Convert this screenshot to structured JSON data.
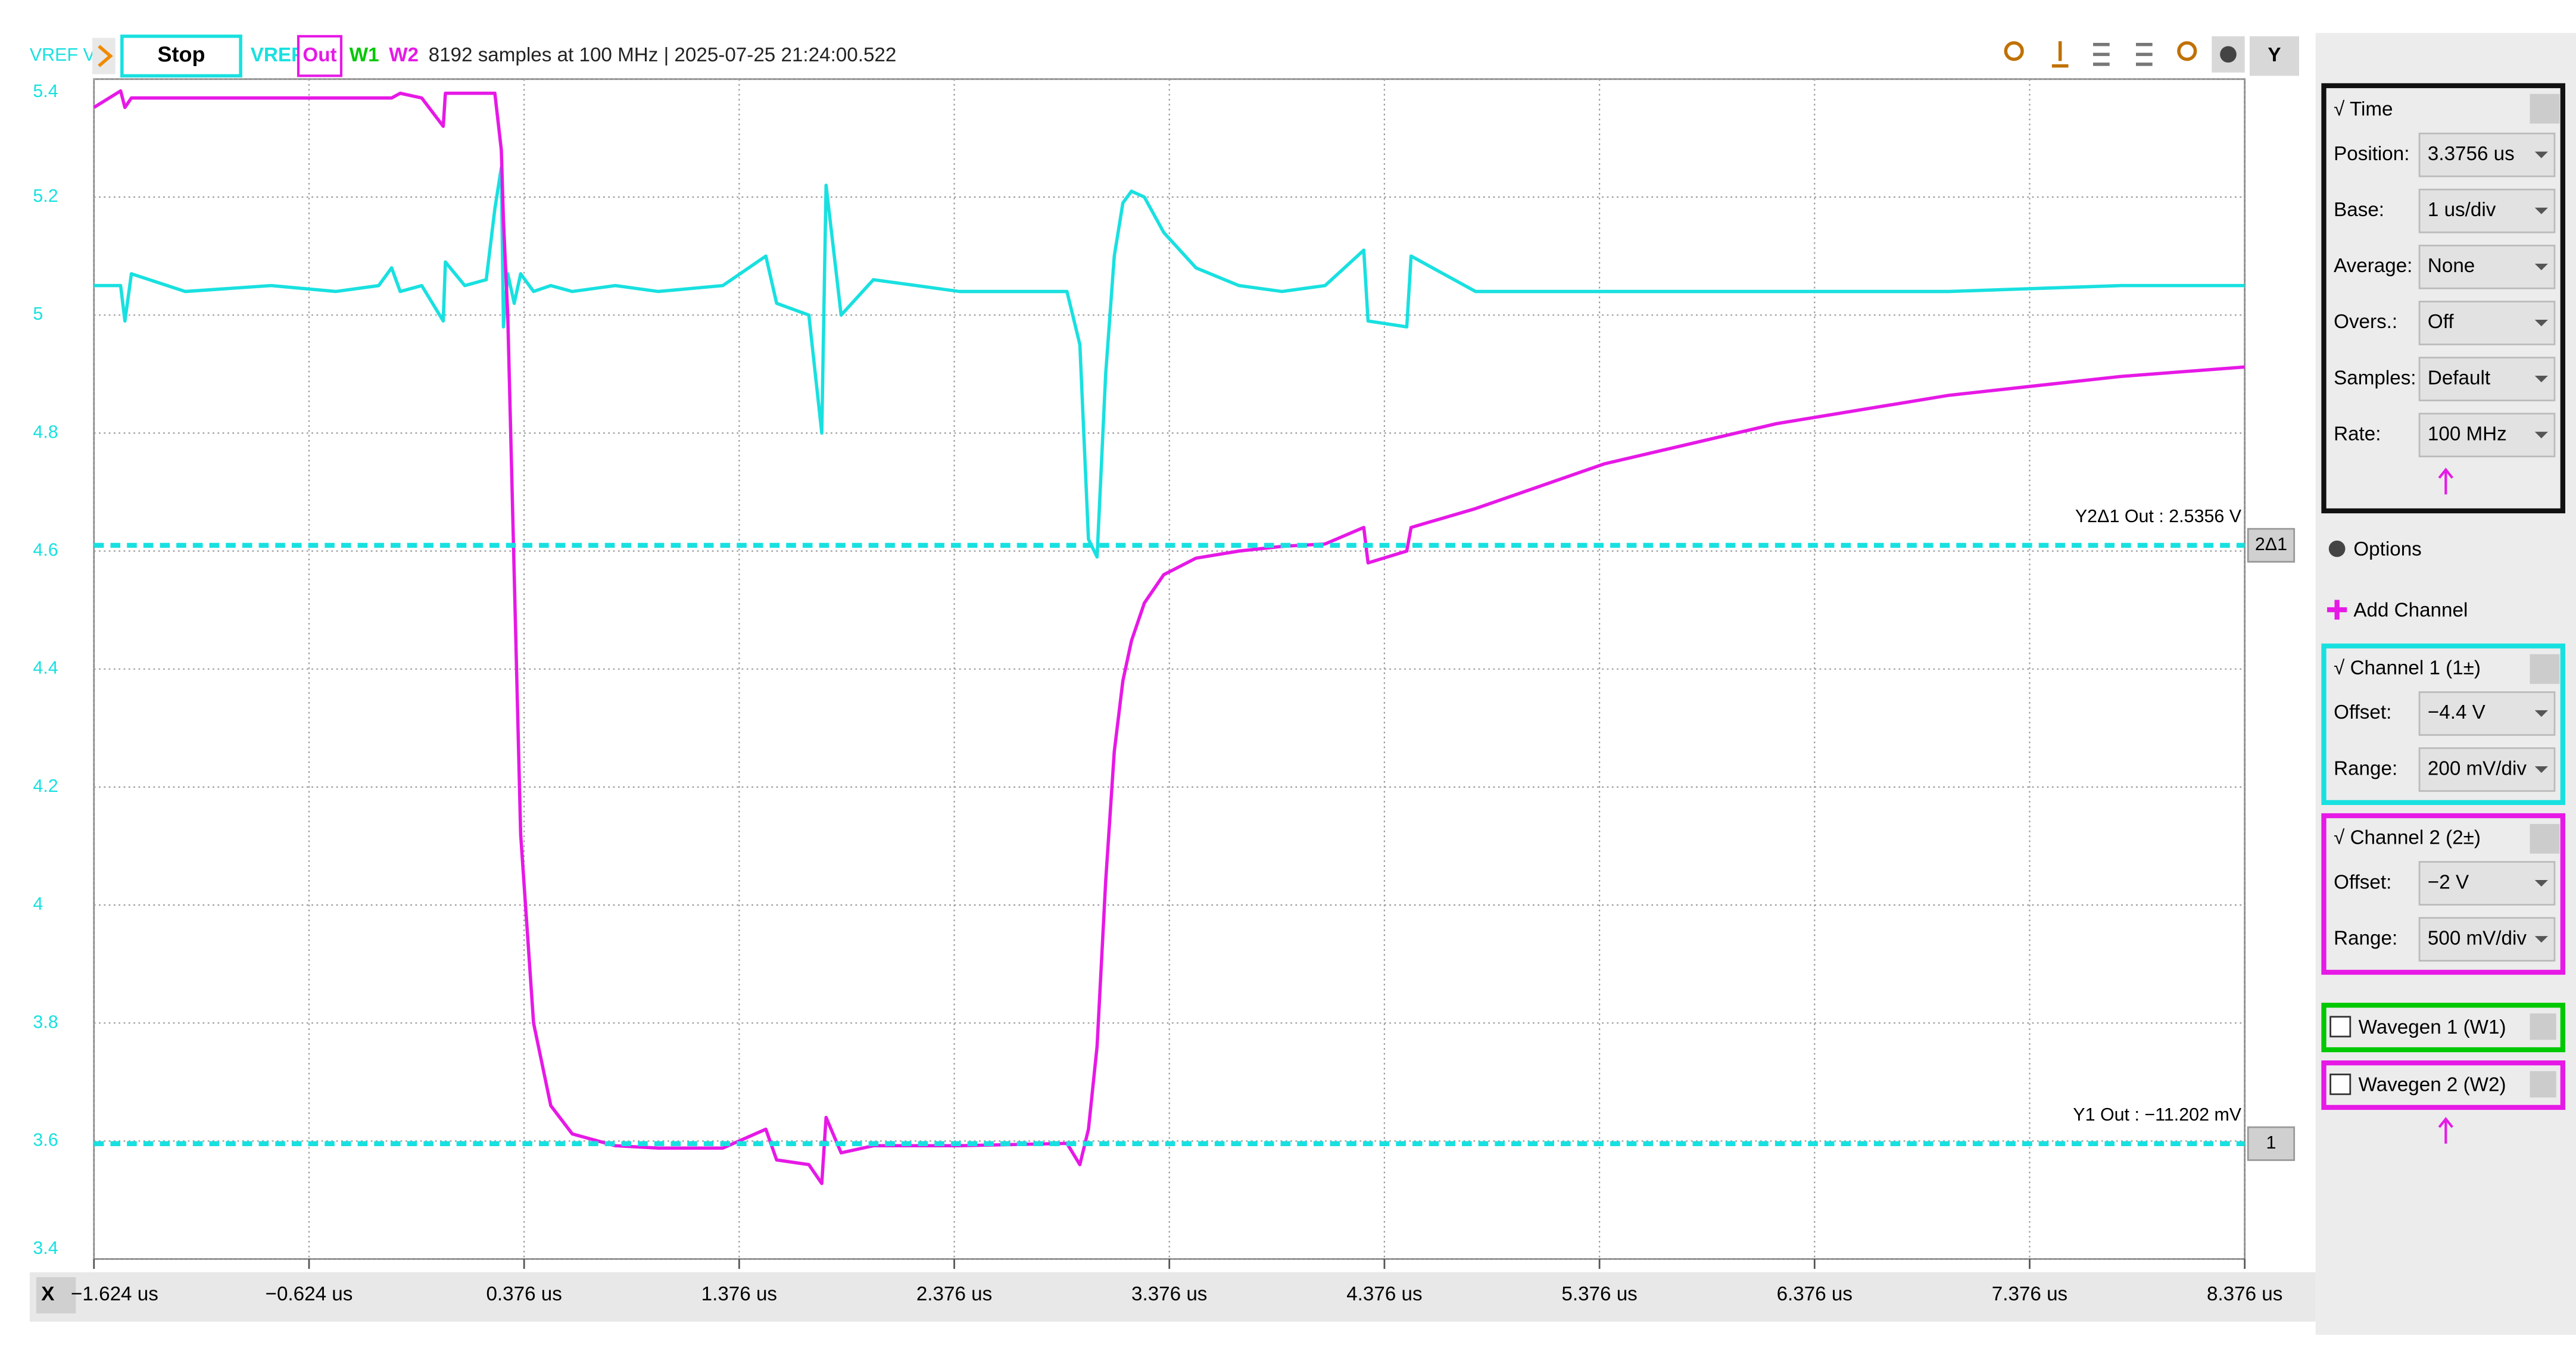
{
  "toolbar": {
    "axis_label": "VREF V",
    "stop": "Stop",
    "wavegens": [
      "W1",
      "W2"
    ],
    "status": "8192 samples at 100 MHz | 2025-07-25 21:24:00.522",
    "y_button": "Y",
    "x_button": "X"
  },
  "chart_data": {
    "type": "line",
    "x": [
      -1.624,
      -1.5,
      -1.48,
      -1.45,
      -1.2,
      -0.8,
      -0.5,
      -0.3,
      -0.24,
      -0.2,
      -0.1,
      0.0,
      0.01,
      0.1,
      0.2,
      0.24,
      0.27,
      0.28,
      0.3,
      0.33,
      0.36,
      0.42,
      0.5,
      0.6,
      0.8,
      1.0,
      1.3,
      1.5,
      1.55,
      1.7,
      1.76,
      1.78,
      1.85,
      2.0,
      2.4,
      2.9,
      2.96,
      3.0,
      3.04,
      3.08,
      3.12,
      3.16,
      3.2,
      3.26,
      3.35,
      3.5,
      3.7,
      3.9,
      4.1,
      4.28,
      4.3,
      4.48,
      4.5,
      4.8,
      5.4,
      6.2,
      7.0,
      7.8,
      8.376
    ],
    "series": [
      {
        "name": "VREF",
        "color": "#19e0e0",
        "values": [
          5.05,
          5.05,
          4.99,
          5.07,
          5.04,
          5.05,
          5.04,
          5.05,
          5.08,
          5.04,
          5.05,
          4.99,
          5.09,
          5.05,
          5.06,
          5.18,
          5.25,
          4.98,
          5.07,
          5.02,
          5.07,
          5.04,
          5.05,
          5.04,
          5.05,
          5.04,
          5.05,
          5.1,
          5.02,
          5.0,
          4.8,
          5.22,
          5.0,
          5.06,
          5.04,
          5.04,
          4.95,
          4.62,
          4.59,
          4.9,
          5.1,
          5.19,
          5.21,
          5.2,
          5.14,
          5.08,
          5.05,
          5.04,
          5.05,
          5.11,
          4.99,
          4.98,
          5.1,
          5.04,
          5.04,
          5.04,
          5.04,
          5.05,
          5.05
        ]
      },
      {
        "name": "Out",
        "color": "#e619e6",
        "axis": "y2",
        "values": [
          4.38,
          4.45,
          4.38,
          4.42,
          4.42,
          4.42,
          4.42,
          4.42,
          4.42,
          4.44,
          4.42,
          4.3,
          4.44,
          4.44,
          4.44,
          4.44,
          4.2,
          3.9,
          3.5,
          2.4,
          1.3,
          0.5,
          0.15,
          0.03,
          -0.02,
          -0.03,
          -0.03,
          0.05,
          -0.08,
          -0.1,
          -0.18,
          0.1,
          -0.05,
          -0.02,
          -0.02,
          -0.01,
          -0.1,
          0.05,
          0.4,
          1.1,
          1.65,
          1.95,
          2.12,
          2.28,
          2.4,
          2.47,
          2.5,
          2.52,
          2.53,
          2.6,
          2.45,
          2.5,
          2.6,
          2.68,
          2.87,
          3.04,
          3.16,
          3.24,
          3.28
        ]
      }
    ],
    "xlim": [
      -1.624,
      8.376
    ],
    "xticks": [
      {
        "value": -1.624,
        "label": "−1.624 us"
      },
      {
        "value": -0.624,
        "label": "−0.624 us"
      },
      {
        "value": 0.376,
        "label": "0.376 us"
      },
      {
        "value": 1.376,
        "label": "1.376 us"
      },
      {
        "value": 2.376,
        "label": "2.376 us"
      },
      {
        "value": 3.376,
        "label": "3.376 us"
      },
      {
        "value": 4.376,
        "label": "4.376 us"
      },
      {
        "value": 5.376,
        "label": "5.376 us"
      },
      {
        "value": 6.376,
        "label": "6.376 us"
      },
      {
        "value": 7.376,
        "label": "7.376 us"
      },
      {
        "value": 8.376,
        "label": "8.376 us"
      }
    ],
    "ylim": [
      3.4,
      5.4
    ],
    "yticks": [
      5.4,
      5.2,
      5,
      4.8,
      4.6,
      4.4,
      4.2,
      4,
      3.8,
      3.6,
      3.4
    ],
    "y2lim": [
      -0.5,
      4.5
    ],
    "grid": true,
    "cursors": [
      {
        "label": "Y1 Out : −11.202 mV",
        "value": -0.011202,
        "badge": "1"
      },
      {
        "label": "Y2Δ1 Out : 2.5356 V",
        "delta": 2.5356,
        "badge": "2Δ1"
      }
    ]
  },
  "panel": {
    "time": {
      "title": "√  Time",
      "rows": [
        {
          "label": "Position:",
          "value": "3.3756 us"
        },
        {
          "label": "Base:",
          "value": "1 us/div"
        },
        {
          "label": "Average:",
          "value": "None"
        },
        {
          "label": "Overs.:",
          "value": "Off"
        },
        {
          "label": "Samples:",
          "value": "Default"
        },
        {
          "label": "Rate:",
          "value": "100 MHz"
        }
      ]
    },
    "options": "Options",
    "add_channel": "Add Channel",
    "channels": [
      {
        "title": "√  Channel 1 (1±)",
        "color": "#19e0e0",
        "rows": [
          {
            "label": "Offset:",
            "value": "−4.4 V"
          },
          {
            "label": "Range:",
            "value": "200 mV/div"
          }
        ]
      },
      {
        "title": "√  Channel 2 (2±)",
        "color": "#e619e6",
        "rows": [
          {
            "label": "Offset:",
            "value": "−2 V"
          },
          {
            "label": "Range:",
            "value": "500 mV/div"
          }
        ]
      }
    ],
    "wavegens": [
      {
        "title": "Wavegen 1 (W1)",
        "color": "#00c800"
      },
      {
        "title": "Wavegen 2 (W2)",
        "color": "#e619e6"
      }
    ]
  }
}
